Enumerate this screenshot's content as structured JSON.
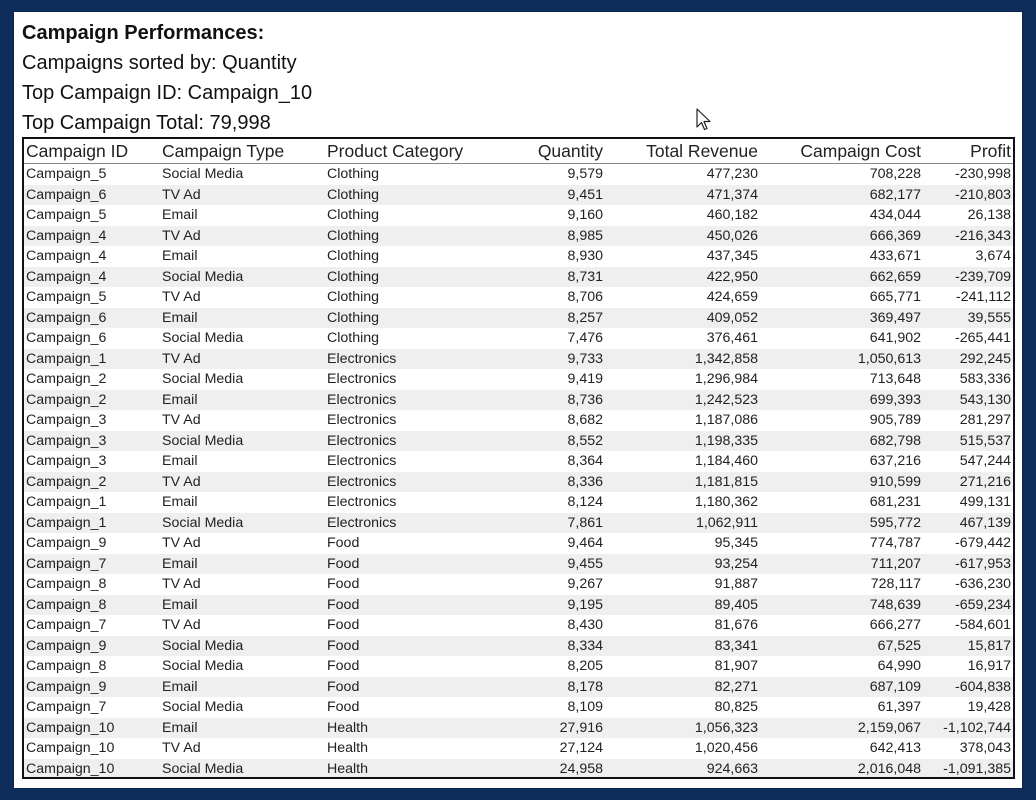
{
  "report": {
    "title": "Campaign Performances:",
    "sorted_by": "Campaigns sorted by: Quantity",
    "top_campaign_id": "Top Campaign ID: Campaign_10",
    "top_campaign_total": "Top Campaign Total: 79,998"
  },
  "table": {
    "columns": [
      "Campaign ID",
      "Campaign Type",
      "Product Category",
      "Quantity",
      "Total Revenue",
      "Campaign Cost",
      "Profit"
    ],
    "rows": [
      [
        "Campaign_5",
        "Social Media",
        "Clothing",
        "9,579",
        "477,230",
        "708,228",
        "-230,998"
      ],
      [
        "Campaign_6",
        "TV Ad",
        "Clothing",
        "9,451",
        "471,374",
        "682,177",
        "-210,803"
      ],
      [
        "Campaign_5",
        "Email",
        "Clothing",
        "9,160",
        "460,182",
        "434,044",
        "26,138"
      ],
      [
        "Campaign_4",
        "TV Ad",
        "Clothing",
        "8,985",
        "450,026",
        "666,369",
        "-216,343"
      ],
      [
        "Campaign_4",
        "Email",
        "Clothing",
        "8,930",
        "437,345",
        "433,671",
        "3,674"
      ],
      [
        "Campaign_4",
        "Social Media",
        "Clothing",
        "8,731",
        "422,950",
        "662,659",
        "-239,709"
      ],
      [
        "Campaign_5",
        "TV Ad",
        "Clothing",
        "8,706",
        "424,659",
        "665,771",
        "-241,112"
      ],
      [
        "Campaign_6",
        "Email",
        "Clothing",
        "8,257",
        "409,052",
        "369,497",
        "39,555"
      ],
      [
        "Campaign_6",
        "Social Media",
        "Clothing",
        "7,476",
        "376,461",
        "641,902",
        "-265,441"
      ],
      [
        "Campaign_1",
        "TV Ad",
        "Electronics",
        "9,733",
        "1,342,858",
        "1,050,613",
        "292,245"
      ],
      [
        "Campaign_2",
        "Social Media",
        "Electronics",
        "9,419",
        "1,296,984",
        "713,648",
        "583,336"
      ],
      [
        "Campaign_2",
        "Email",
        "Electronics",
        "8,736",
        "1,242,523",
        "699,393",
        "543,130"
      ],
      [
        "Campaign_3",
        "TV Ad",
        "Electronics",
        "8,682",
        "1,187,086",
        "905,789",
        "281,297"
      ],
      [
        "Campaign_3",
        "Social Media",
        "Electronics",
        "8,552",
        "1,198,335",
        "682,798",
        "515,537"
      ],
      [
        "Campaign_3",
        "Email",
        "Electronics",
        "8,364",
        "1,184,460",
        "637,216",
        "547,244"
      ],
      [
        "Campaign_2",
        "TV Ad",
        "Electronics",
        "8,336",
        "1,181,815",
        "910,599",
        "271,216"
      ],
      [
        "Campaign_1",
        "Email",
        "Electronics",
        "8,124",
        "1,180,362",
        "681,231",
        "499,131"
      ],
      [
        "Campaign_1",
        "Social Media",
        "Electronics",
        "7,861",
        "1,062,911",
        "595,772",
        "467,139"
      ],
      [
        "Campaign_9",
        "TV Ad",
        "Food",
        "9,464",
        "95,345",
        "774,787",
        "-679,442"
      ],
      [
        "Campaign_7",
        "Email",
        "Food",
        "9,455",
        "93,254",
        "711,207",
        "-617,953"
      ],
      [
        "Campaign_8",
        "TV Ad",
        "Food",
        "9,267",
        "91,887",
        "728,117",
        "-636,230"
      ],
      [
        "Campaign_8",
        "Email",
        "Food",
        "9,195",
        "89,405",
        "748,639",
        "-659,234"
      ],
      [
        "Campaign_7",
        "TV Ad",
        "Food",
        "8,430",
        "81,676",
        "666,277",
        "-584,601"
      ],
      [
        "Campaign_9",
        "Social Media",
        "Food",
        "8,334",
        "83,341",
        "67,525",
        "15,817"
      ],
      [
        "Campaign_8",
        "Social Media",
        "Food",
        "8,205",
        "81,907",
        "64,990",
        "16,917"
      ],
      [
        "Campaign_9",
        "Email",
        "Food",
        "8,178",
        "82,271",
        "687,109",
        "-604,838"
      ],
      [
        "Campaign_7",
        "Social Media",
        "Food",
        "8,109",
        "80,825",
        "61,397",
        "19,428"
      ],
      [
        "Campaign_10",
        "Email",
        "Health",
        "27,916",
        "1,056,323",
        "2,159,067",
        "-1,102,744"
      ],
      [
        "Campaign_10",
        "TV Ad",
        "Health",
        "27,124",
        "1,020,456",
        "642,413",
        "378,043"
      ],
      [
        "Campaign_10",
        "Social Media",
        "Health",
        "24,958",
        "924,663",
        "2,016,048",
        "-1,091,385"
      ]
    ]
  },
  "colors": {
    "frame_background": "#0f2d5a",
    "report_background": "#ffffff",
    "alternate_row": "#efefef"
  },
  "icons": {
    "cursor": "mouse-pointer-icon"
  }
}
